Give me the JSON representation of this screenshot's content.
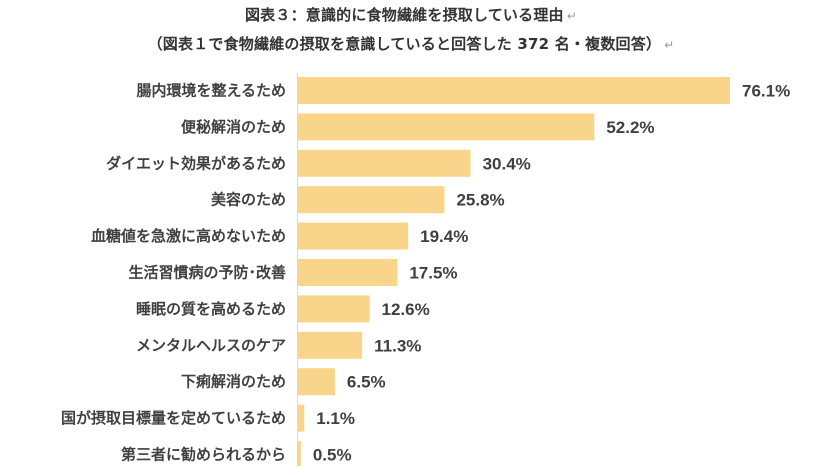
{
  "title": {
    "line1": "図表３：意識的に食物繊維を摂取している理由",
    "line2": "（図表１で食物繊維の摂取を意識していると回答した 372 名・複数回答）",
    "return_mark": "↵"
  },
  "chart_data": {
    "type": "bar",
    "orientation": "horizontal",
    "title": "図表３：意識的に食物繊維を摂取している理由",
    "subtitle": "（図表１で食物繊維の摂取を意識していると回答した 372 名・複数回答）",
    "xlabel": "",
    "ylabel": "",
    "xlim": [
      0,
      76.1
    ],
    "grid": false,
    "legend": "none",
    "bar_color": "#F8D58B",
    "value_suffix": "%",
    "categories": [
      "腸内環境を整えるため",
      "便秘解消のため",
      "ダイエット効果があるため",
      "美容のため",
      "血糖値を急激に高めないため",
      "生活習慣病の予防･改善",
      "睡眠の質を高めるため",
      "メンタルヘルスのケア",
      "下痢解消のため",
      "国が摂取目標量を定めているため",
      "第三者に勧められるから"
    ],
    "values": [
      76.1,
      52.2,
      30.4,
      25.8,
      19.4,
      17.5,
      12.6,
      11.3,
      6.5,
      1.1,
      0.5
    ],
    "value_labels": [
      "76.1%",
      "52.2%",
      "30.4%",
      "25.8%",
      "19.4%",
      "17.5%",
      "12.6%",
      "11.3%",
      "6.5%",
      "1.1%",
      "0.5%"
    ]
  }
}
